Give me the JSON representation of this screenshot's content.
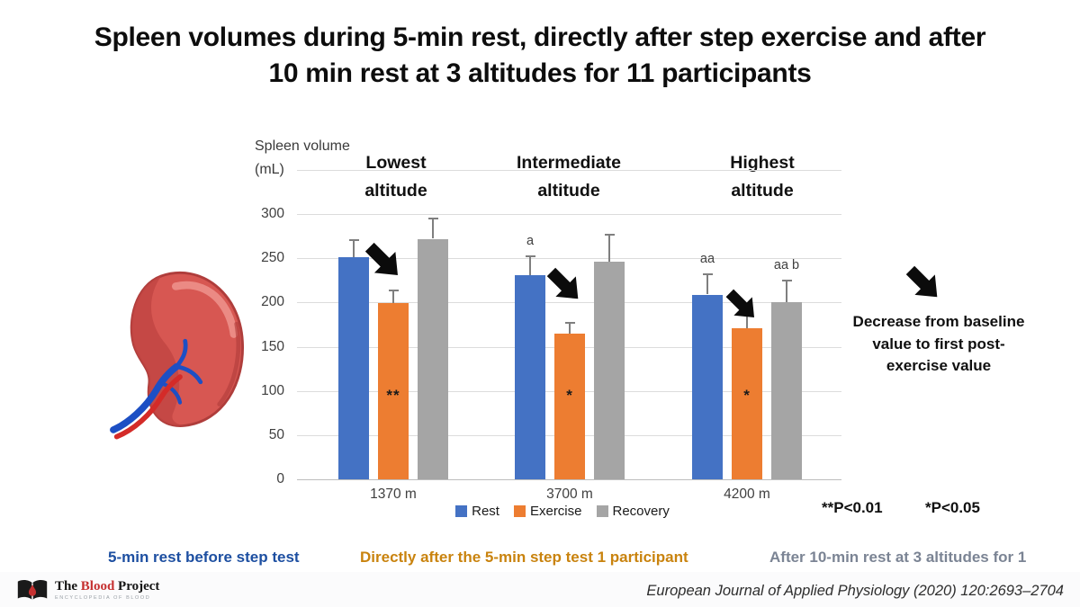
{
  "title_line1": "Spleen volumes during 5-min rest, directly after step exercise and after",
  "title_line2": "10 min rest at 3 altitudes for 11 participants",
  "chart_data": {
    "type": "bar",
    "y_axis": {
      "label_line1": "Spleen volume",
      "label_line2": "(mL)",
      "ticks": [
        0,
        50,
        100,
        150,
        200,
        250,
        300
      ],
      "top_gridline": 350,
      "ylim": [
        0,
        350
      ],
      "grid": true
    },
    "series": [
      {
        "name": "Rest",
        "color": "#4472C4"
      },
      {
        "name": "Exercise",
        "color": "#ED7D31"
      },
      {
        "name": "Recovery",
        "color": "#A5A5A5"
      }
    ],
    "groups": [
      {
        "header_line1": "Lowest",
        "header_line2": "altitude",
        "category": "1370 m",
        "bars": [
          {
            "series": "Rest",
            "value": 251,
            "error": 21
          },
          {
            "series": "Exercise",
            "value": 199,
            "error": 16,
            "sig_inside": "**"
          },
          {
            "series": "Recovery",
            "value": 272,
            "error": 24
          }
        ]
      },
      {
        "header_line1": "Intermediate",
        "header_line2": "altitude",
        "category": "3700 m",
        "bars": [
          {
            "series": "Rest",
            "value": 231,
            "error": 22,
            "sig_above": "a"
          },
          {
            "series": "Exercise",
            "value": 165,
            "error": 13,
            "sig_inside": "*"
          },
          {
            "series": "Recovery",
            "value": 246,
            "error": 32
          }
        ]
      },
      {
        "header_line1": "Highest",
        "header_line2": "altitude",
        "category": "4200 m",
        "bars": [
          {
            "series": "Rest",
            "value": 209,
            "error": 24,
            "sig_above": "aa"
          },
          {
            "series": "Exercise",
            "value": 171,
            "error": 17,
            "sig_inside": "*"
          },
          {
            "series": "Recovery",
            "value": 200,
            "error": 26,
            "sig_above": "aa b"
          }
        ]
      }
    ],
    "significance_notes": {
      "note1": "**P<0.01",
      "note2": "*P<0.05"
    },
    "legend_position": "bottom"
  },
  "annotation": {
    "text": "Decrease from baseline value to first post-exercise value"
  },
  "captions": {
    "rest": {
      "text": "5-min rest before step test",
      "color": "#1D4FA1"
    },
    "exercise": {
      "text": "Directly after the 5-min step test 1 participant",
      "color": "#C9830E"
    },
    "recovery": {
      "text": "After 10-min rest at 3 altitudes for 1",
      "color": "#7B8494"
    }
  },
  "footer": {
    "logo": {
      "word1": "The",
      "word2": "Blood",
      "word3": "Project",
      "subtitle": "ENCYCLOPEDIA OF BLOOD",
      "accent_color": "#C53030"
    },
    "citation": "European Journal of Applied Physiology (2020) 120:2693–2704"
  }
}
